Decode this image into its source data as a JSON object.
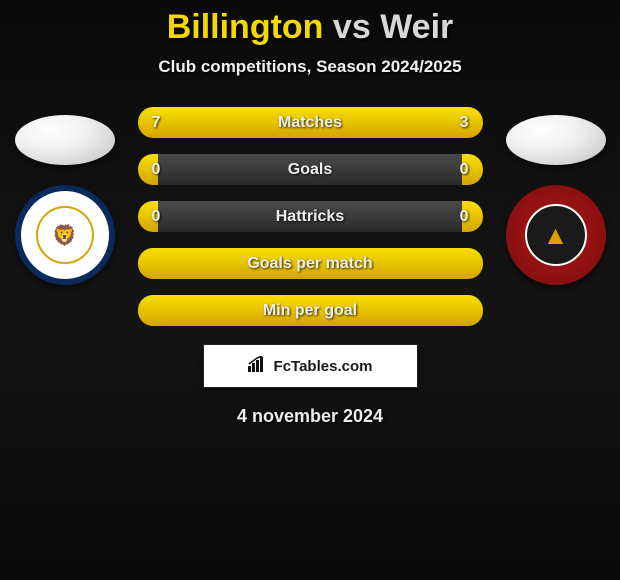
{
  "header": {
    "player1": "Billington",
    "vs": "vs",
    "player2": "Weir",
    "subtitle": "Club competitions, Season 2024/2025"
  },
  "colors": {
    "accent": "#f8e000",
    "accent_dark": "#d4a400",
    "bar_bg_top": "#4a4a4a",
    "bar_bg_bottom": "#2a2a2a",
    "text": "#ededed",
    "background": "#0a0a0a"
  },
  "clubs": {
    "left": {
      "glyph": "🦁",
      "label": "crewe-alexandra"
    },
    "right": {
      "glyph": "▲",
      "label": "walsall-fc"
    }
  },
  "bars": [
    {
      "label": "Matches",
      "left_value": "7",
      "right_value": "3",
      "left_pct": 67,
      "right_pct": 33,
      "show_values": true
    },
    {
      "label": "Goals",
      "left_value": "0",
      "right_value": "0",
      "left_pct": 6,
      "right_pct": 6,
      "show_values": true
    },
    {
      "label": "Hattricks",
      "left_value": "0",
      "right_value": "0",
      "left_pct": 6,
      "right_pct": 6,
      "show_values": true
    },
    {
      "label": "Goals per match",
      "left_value": "",
      "right_value": "",
      "left_pct": 100,
      "right_pct": 0,
      "show_values": false,
      "full": true
    },
    {
      "label": "Min per goal",
      "left_value": "",
      "right_value": "",
      "left_pct": 100,
      "right_pct": 0,
      "show_values": false,
      "full": true
    }
  ],
  "attribution": {
    "text": "FcTables.com"
  },
  "date": "4 november 2024"
}
